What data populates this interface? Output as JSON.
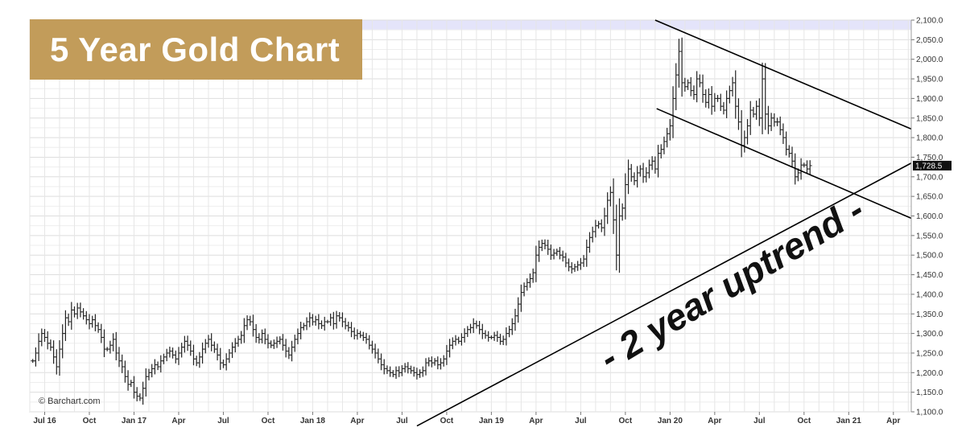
{
  "chart_data": {
    "type": "bar",
    "subtype": "ohlc",
    "title": "5 Year Gold Chart",
    "watermark": "© Barchart.com",
    "annotation": "- 2 year uptrend -",
    "last_price_label": "1,728.5",
    "x_tick_labels": [
      "Jul 16",
      "Oct",
      "Jan 17",
      "Apr",
      "Jul",
      "Oct",
      "Jan 18",
      "Apr",
      "Jul",
      "Oct",
      "Jan 19",
      "Apr",
      "Jul",
      "Oct",
      "Jan 20",
      "Apr",
      "Jul",
      "Oct",
      "Jan 21",
      "Apr"
    ],
    "x_tick_months": [
      6,
      9,
      12,
      15,
      18,
      21,
      24,
      27,
      30,
      33,
      36,
      39,
      42,
      45,
      48,
      51,
      54,
      57,
      60,
      63
    ],
    "x_range_months": [
      5.0,
      64.2
    ],
    "y_tick_labels": [
      "1,100.0",
      "1,150.0",
      "1,200.0",
      "1,250.0",
      "1,300.0",
      "1,350.0",
      "1,400.0",
      "1,450.0",
      "1,500.0",
      "1,550.0",
      "1,600.0",
      "1,650.0",
      "1,700.0",
      "1,750.0",
      "1,800.0",
      "1,850.0",
      "1,900.0",
      "1,950.0",
      "2,000.0",
      "2,050.0",
      "2,100.0"
    ],
    "y_ticks": [
      1100,
      1150,
      1200,
      1250,
      1300,
      1350,
      1400,
      1450,
      1500,
      1550,
      1600,
      1650,
      1700,
      1750,
      1800,
      1850,
      1900,
      1950,
      2000,
      2050,
      2100
    ],
    "ylim": [
      1100,
      2100
    ],
    "grid": true,
    "x_month_index_origin": "Jan 2016 = 0",
    "weekly_close": [
      [
        5.2,
        1230
      ],
      [
        5.4,
        1250
      ],
      [
        5.6,
        1280
      ],
      [
        5.8,
        1300
      ],
      [
        6.0,
        1290
      ],
      [
        6.2,
        1275
      ],
      [
        6.4,
        1265
      ],
      [
        6.6,
        1240
      ],
      [
        6.8,
        1215
      ],
      [
        7.0,
        1260
      ],
      [
        7.2,
        1300
      ],
      [
        7.4,
        1340
      ],
      [
        7.6,
        1330
      ],
      [
        7.8,
        1360
      ],
      [
        8.0,
        1350
      ],
      [
        8.2,
        1365
      ],
      [
        8.4,
        1355
      ],
      [
        8.6,
        1345
      ],
      [
        8.8,
        1335
      ],
      [
        9.0,
        1325
      ],
      [
        9.2,
        1335
      ],
      [
        9.4,
        1320
      ],
      [
        9.6,
        1310
      ],
      [
        9.8,
        1290
      ],
      [
        10.0,
        1260
      ],
      [
        10.2,
        1260
      ],
      [
        10.4,
        1270
      ],
      [
        10.6,
        1285
      ],
      [
        10.8,
        1250
      ],
      [
        11.0,
        1230
      ],
      [
        11.2,
        1215
      ],
      [
        11.4,
        1190
      ],
      [
        11.6,
        1170
      ],
      [
        11.8,
        1175
      ],
      [
        12.0,
        1150
      ],
      [
        12.2,
        1140
      ],
      [
        12.4,
        1135
      ],
      [
        12.6,
        1160
      ],
      [
        12.8,
        1190
      ],
      [
        13.0,
        1200
      ],
      [
        13.2,
        1210
      ],
      [
        13.4,
        1220
      ],
      [
        13.6,
        1215
      ],
      [
        13.8,
        1230
      ],
      [
        14.0,
        1240
      ],
      [
        14.2,
        1250
      ],
      [
        14.4,
        1255
      ],
      [
        14.6,
        1245
      ],
      [
        14.8,
        1235
      ],
      [
        15.0,
        1250
      ],
      [
        15.2,
        1265
      ],
      [
        15.4,
        1280
      ],
      [
        15.6,
        1270
      ],
      [
        15.8,
        1255
      ],
      [
        16.0,
        1235
      ],
      [
        16.2,
        1225
      ],
      [
        16.4,
        1240
      ],
      [
        16.6,
        1260
      ],
      [
        16.8,
        1275
      ],
      [
        17.0,
        1285
      ],
      [
        17.2,
        1270
      ],
      [
        17.4,
        1260
      ],
      [
        17.6,
        1245
      ],
      [
        17.8,
        1225
      ],
      [
        18.0,
        1220
      ],
      [
        18.2,
        1235
      ],
      [
        18.4,
        1250
      ],
      [
        18.6,
        1265
      ],
      [
        18.8,
        1275
      ],
      [
        19.0,
        1285
      ],
      [
        19.2,
        1295
      ],
      [
        19.4,
        1320
      ],
      [
        19.6,
        1335
      ],
      [
        19.8,
        1330
      ],
      [
        20.0,
        1310
      ],
      [
        20.2,
        1290
      ],
      [
        20.4,
        1285
      ],
      [
        20.6,
        1300
      ],
      [
        20.8,
        1285
      ],
      [
        21.0,
        1275
      ],
      [
        21.2,
        1270
      ],
      [
        21.4,
        1275
      ],
      [
        21.6,
        1280
      ],
      [
        21.8,
        1285
      ],
      [
        22.0,
        1270
      ],
      [
        22.2,
        1255
      ],
      [
        22.4,
        1245
      ],
      [
        22.6,
        1265
      ],
      [
        22.8,
        1285
      ],
      [
        23.0,
        1300
      ],
      [
        23.2,
        1315
      ],
      [
        23.4,
        1320
      ],
      [
        23.6,
        1330
      ],
      [
        23.8,
        1340
      ],
      [
        24.0,
        1330
      ],
      [
        24.2,
        1335
      ],
      [
        24.4,
        1325
      ],
      [
        24.6,
        1320
      ],
      [
        24.8,
        1330
      ],
      [
        25.0,
        1330
      ],
      [
        25.2,
        1340
      ],
      [
        25.4,
        1325
      ],
      [
        25.6,
        1345
      ],
      [
        25.8,
        1340
      ],
      [
        26.0,
        1330
      ],
      [
        26.2,
        1320
      ],
      [
        26.4,
        1315
      ],
      [
        26.6,
        1305
      ],
      [
        26.8,
        1295
      ],
      [
        27.0,
        1300
      ],
      [
        27.2,
        1295
      ],
      [
        27.4,
        1290
      ],
      [
        27.6,
        1285
      ],
      [
        27.8,
        1270
      ],
      [
        28.0,
        1260
      ],
      [
        28.2,
        1250
      ],
      [
        28.4,
        1235
      ],
      [
        28.6,
        1220
      ],
      [
        28.8,
        1210
      ],
      [
        29.0,
        1205
      ],
      [
        29.2,
        1200
      ],
      [
        29.4,
        1195
      ],
      [
        29.6,
        1205
      ],
      [
        29.8,
        1200
      ],
      [
        30.0,
        1210
      ],
      [
        30.2,
        1215
      ],
      [
        30.4,
        1210
      ],
      [
        30.6,
        1205
      ],
      [
        30.8,
        1200
      ],
      [
        31.0,
        1195
      ],
      [
        31.2,
        1200
      ],
      [
        31.4,
        1205
      ],
      [
        31.6,
        1225
      ],
      [
        31.8,
        1230
      ],
      [
        32.0,
        1225
      ],
      [
        32.2,
        1230
      ],
      [
        32.4,
        1220
      ],
      [
        32.6,
        1225
      ],
      [
        32.8,
        1235
      ],
      [
        33.0,
        1255
      ],
      [
        33.2,
        1270
      ],
      [
        33.4,
        1280
      ],
      [
        33.6,
        1285
      ],
      [
        33.8,
        1280
      ],
      [
        34.0,
        1290
      ],
      [
        34.2,
        1300
      ],
      [
        34.4,
        1310
      ],
      [
        34.6,
        1315
      ],
      [
        34.8,
        1325
      ],
      [
        35.0,
        1320
      ],
      [
        35.2,
        1310
      ],
      [
        35.4,
        1300
      ],
      [
        35.6,
        1295
      ],
      [
        35.8,
        1290
      ],
      [
        36.0,
        1290
      ],
      [
        36.2,
        1295
      ],
      [
        36.4,
        1290
      ],
      [
        36.6,
        1280
      ],
      [
        36.8,
        1285
      ],
      [
        37.0,
        1300
      ],
      [
        37.2,
        1310
      ],
      [
        37.4,
        1325
      ],
      [
        37.6,
        1345
      ],
      [
        37.8,
        1375
      ],
      [
        38.0,
        1405
      ],
      [
        38.2,
        1420
      ],
      [
        38.4,
        1430
      ],
      [
        38.6,
        1440
      ],
      [
        38.8,
        1455
      ],
      [
        39.0,
        1500
      ],
      [
        39.2,
        1520
      ],
      [
        39.4,
        1530
      ],
      [
        39.6,
        1525
      ],
      [
        39.8,
        1515
      ],
      [
        40.0,
        1500
      ],
      [
        40.2,
        1505
      ],
      [
        40.4,
        1510
      ],
      [
        40.6,
        1500
      ],
      [
        40.8,
        1495
      ],
      [
        41.0,
        1480
      ],
      [
        41.2,
        1470
      ],
      [
        41.4,
        1465
      ],
      [
        41.6,
        1470
      ],
      [
        41.8,
        1475
      ],
      [
        42.0,
        1480
      ],
      [
        42.2,
        1490
      ],
      [
        42.4,
        1520
      ],
      [
        42.6,
        1545
      ],
      [
        42.8,
        1560
      ],
      [
        43.0,
        1575
      ],
      [
        43.2,
        1580
      ],
      [
        43.4,
        1570
      ],
      [
        43.6,
        1600
      ],
      [
        43.8,
        1640
      ],
      [
        44.0,
        1660
      ],
      [
        44.2,
        1590
      ],
      [
        44.4,
        1500
      ],
      [
        44.6,
        1600
      ],
      [
        44.8,
        1620
      ],
      [
        45.0,
        1680
      ],
      [
        45.2,
        1720
      ],
      [
        45.4,
        1700
      ],
      [
        45.6,
        1690
      ],
      [
        45.8,
        1710
      ],
      [
        46.0,
        1720
      ],
      [
        46.2,
        1700
      ],
      [
        46.4,
        1710
      ],
      [
        46.6,
        1730
      ],
      [
        46.8,
        1740
      ],
      [
        47.0,
        1720
      ],
      [
        47.2,
        1760
      ],
      [
        47.4,
        1770
      ],
      [
        47.6,
        1790
      ],
      [
        47.8,
        1810
      ],
      [
        48.0,
        1830
      ],
      [
        48.2,
        1900
      ],
      [
        48.4,
        1960
      ],
      [
        48.6,
        2020
      ],
      [
        48.8,
        1940
      ],
      [
        49.0,
        1930
      ],
      [
        49.2,
        1940
      ],
      [
        49.4,
        1920
      ],
      [
        49.6,
        1910
      ],
      [
        49.8,
        1950
      ],
      [
        50.0,
        1940
      ],
      [
        50.2,
        1910
      ],
      [
        50.4,
        1890
      ],
      [
        50.6,
        1910
      ],
      [
        50.8,
        1880
      ],
      [
        51.0,
        1900
      ],
      [
        51.2,
        1900
      ],
      [
        51.4,
        1880
      ],
      [
        51.6,
        1870
      ],
      [
        51.8,
        1900
      ],
      [
        52.0,
        1920
      ],
      [
        52.2,
        1940
      ],
      [
        52.4,
        1880
      ],
      [
        52.6,
        1840
      ],
      [
        52.8,
        1780
      ],
      [
        53.0,
        1800
      ],
      [
        53.2,
        1830
      ],
      [
        53.4,
        1870
      ],
      [
        53.6,
        1860
      ],
      [
        53.8,
        1880
      ],
      [
        54.0,
        1850
      ],
      [
        54.2,
        1950
      ],
      [
        54.4,
        1860
      ],
      [
        54.6,
        1830
      ],
      [
        54.8,
        1850
      ],
      [
        55.0,
        1840
      ],
      [
        55.2,
        1840
      ],
      [
        55.4,
        1820
      ],
      [
        55.6,
        1800
      ],
      [
        55.8,
        1770
      ],
      [
        56.0,
        1760
      ],
      [
        56.2,
        1740
      ],
      [
        56.4,
        1700
      ],
      [
        56.6,
        1710
      ],
      [
        56.8,
        1730
      ],
      [
        57.0,
        1730
      ],
      [
        57.2,
        1720
      ],
      [
        57.4,
        1728.5
      ]
    ],
    "trendlines": [
      {
        "name": "uptrend",
        "points": [
          [
            31.0,
            1064
          ],
          [
            64.2,
            1735
          ]
        ]
      },
      {
        "name": "channel-upper",
        "points": [
          [
            47.0,
            2100
          ],
          [
            64.2,
            1822
          ]
        ]
      },
      {
        "name": "channel-lower",
        "points": [
          [
            47.1,
            1874
          ],
          [
            64.2,
            1594
          ]
        ]
      }
    ]
  }
}
